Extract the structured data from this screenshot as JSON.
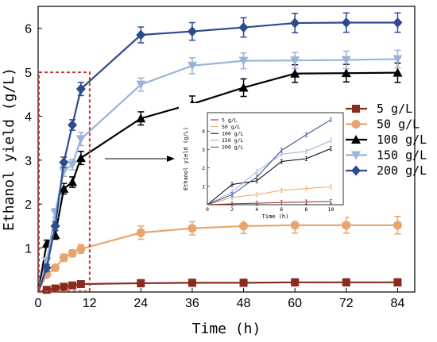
{
  "chart_data": [
    {
      "type": "line",
      "title": "",
      "xlabel": "Time  (h)",
      "ylabel": "Ethanol yield  (g/L)",
      "xlim": [
        0,
        88
      ],
      "ylim": [
        0,
        6.5
      ],
      "x_ticks": [
        "0",
        "12",
        "24",
        "36",
        "48",
        "60",
        "72",
        "84"
      ],
      "y_ticks": [
        "1",
        "2",
        "3",
        "4",
        "5",
        "6"
      ],
      "x": [
        0,
        2,
        4,
        6,
        8,
        10,
        24,
        36,
        48,
        60,
        72,
        84
      ],
      "legend_position": "right",
      "series": [
        {
          "name": "5 g/L",
          "marker": "square",
          "color": "#8B2A1E",
          "values": [
            0,
            0.05,
            0.08,
            0.12,
            0.15,
            0.18,
            0.2,
            0.21,
            0.21,
            0.22,
            0.22,
            0.22
          ],
          "errors": [
            0,
            0.04,
            0.04,
            0.05,
            0.05,
            0.06,
            0.08,
            0.08,
            0.08,
            0.08,
            0.08,
            0.08
          ]
        },
        {
          "name": "50 g/L",
          "marker": "circle",
          "color": "#E8A46C",
          "values": [
            0,
            0.4,
            0.55,
            0.78,
            0.88,
            0.98,
            1.35,
            1.45,
            1.5,
            1.52,
            1.52,
            1.52
          ],
          "errors": [
            0,
            0.06,
            0.07,
            0.08,
            0.08,
            0.1,
            0.15,
            0.15,
            0.17,
            0.18,
            0.18,
            0.2
          ]
        },
        {
          "name": "100 g/L",
          "marker": "triangle",
          "color": "#000000",
          "values": [
            0,
            1.1,
            1.3,
            2.35,
            2.5,
            3.05,
            3.95,
            4.28,
            4.65,
            4.97,
            4.98,
            4.99
          ],
          "errors": [
            0,
            0.08,
            0.1,
            0.12,
            0.12,
            0.15,
            0.15,
            0.18,
            0.2,
            0.2,
            0.2,
            0.22
          ]
        },
        {
          "name": "150 g/L",
          "marker": "triangle-down",
          "color": "#98B4D8",
          "values": [
            0,
            0.7,
            1.8,
            2.75,
            2.9,
            3.48,
            4.72,
            5.15,
            5.26,
            5.27,
            5.28,
            5.3
          ],
          "errors": [
            0,
            0.08,
            0.1,
            0.12,
            0.12,
            0.15,
            0.15,
            0.18,
            0.18,
            0.18,
            0.2,
            0.2
          ]
        },
        {
          "name": "200 g/L",
          "marker": "diamond",
          "color": "#2D4B8E",
          "values": [
            0,
            0.55,
            1.5,
            2.95,
            3.8,
            4.62,
            5.85,
            5.93,
            6.02,
            6.12,
            6.13,
            6.13
          ],
          "errors": [
            0,
            0.08,
            0.1,
            0.12,
            0.12,
            0.15,
            0.18,
            0.2,
            0.22,
            0.22,
            0.22,
            0.22
          ]
        }
      ],
      "highlight_region": {
        "x": [
          0,
          10
        ],
        "y": [
          0,
          5
        ]
      }
    },
    {
      "type": "line",
      "title": "",
      "xlabel": "Time  (h)",
      "ylabel": "Ethanol yield  (g/L)",
      "xlim": [
        0,
        11
      ],
      "ylim": [
        0,
        5
      ],
      "x_ticks": [
        "0",
        "2",
        "4",
        "6",
        "8",
        "10"
      ],
      "y_ticks": [
        "1",
        "2",
        "3",
        "4"
      ],
      "x": [
        0,
        2,
        4,
        6,
        8,
        10
      ],
      "series": [
        {
          "name": "5 g/L",
          "color": "#8B2A1E",
          "values": [
            0,
            0.05,
            0.08,
            0.12,
            0.15,
            0.18
          ]
        },
        {
          "name": "50 g/L",
          "color": "#E8A46C",
          "values": [
            0,
            0.4,
            0.55,
            0.78,
            0.88,
            0.98
          ]
        },
        {
          "name": "100 g/L",
          "color": "#000000",
          "values": [
            0,
            1.1,
            1.3,
            2.35,
            2.5,
            3.05
          ]
        },
        {
          "name": "150 g/L",
          "color": "#98B4D8",
          "values": [
            0,
            0.7,
            1.8,
            2.75,
            2.9,
            3.48
          ]
        },
        {
          "name": "200 g/L",
          "color": "#2D4B8E",
          "values": [
            0,
            0.55,
            1.5,
            2.95,
            3.8,
            4.62
          ]
        }
      ]
    }
  ]
}
